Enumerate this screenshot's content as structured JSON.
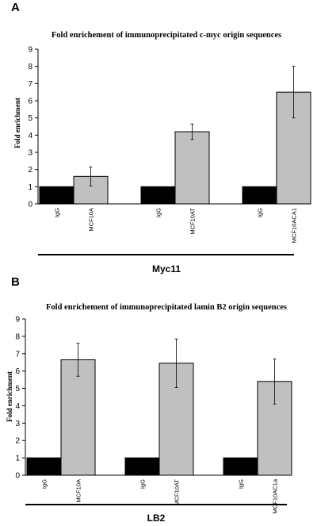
{
  "chart_data": [
    {
      "type": "bar",
      "panel_label": "A",
      "title": "Fold enrichement of immunoprecipitated c-myc origin sequences",
      "ylabel": "Fold enrichment",
      "xlabel": "",
      "ylim": [
        0,
        9
      ],
      "yticks": [
        0,
        1,
        2,
        3,
        4,
        5,
        6,
        7,
        8,
        9
      ],
      "group_label": "Myc11",
      "categories": [
        "IgG",
        "MCF10A",
        "IgG",
        "MCF10AT",
        "IgG",
        "MCF10ACA1"
      ],
      "values": [
        1,
        1.6,
        1,
        4.2,
        1,
        6.5
      ],
      "errors": [
        0,
        0.55,
        0,
        0.45,
        0,
        1.5
      ],
      "colors": [
        "#000000",
        "#c0c0c0",
        "#000000",
        "#c0c0c0",
        "#000000",
        "#c0c0c0"
      ],
      "grid": false
    },
    {
      "type": "bar",
      "panel_label": "B",
      "title": "Fold enrichement of immunoprecipitated  lamin B2 origin sequences",
      "ylabel": "Fold enrichment",
      "xlabel": "",
      "ylim": [
        0,
        9
      ],
      "yticks": [
        0,
        1,
        2,
        3,
        4,
        5,
        6,
        7,
        8,
        9
      ],
      "group_label": "LB2",
      "categories": [
        "IgG",
        "MCF10A",
        "IgG",
        "MCF10AT",
        "IgG",
        "MCF10AC1a"
      ],
      "values": [
        1,
        6.65,
        1,
        6.45,
        1,
        5.4
      ],
      "errors": [
        0,
        0.95,
        0,
        1.4,
        0,
        1.3
      ],
      "colors": [
        "#000000",
        "#c0c0c0",
        "#000000",
        "#c0c0c0",
        "#000000",
        "#c0c0c0"
      ],
      "grid": false
    }
  ]
}
